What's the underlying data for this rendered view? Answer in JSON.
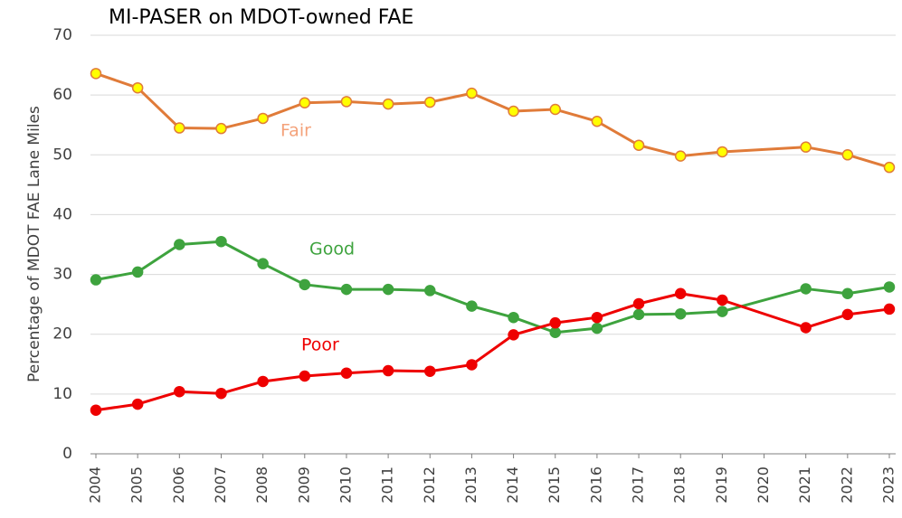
{
  "chart_data": {
    "type": "line",
    "title": "MI-PASER on MDOT-owned FAE",
    "y_label": "Percentage of MDOT FAE Lane Miles",
    "x": [
      2004,
      2005,
      2006,
      2007,
      2008,
      2009,
      2010,
      2011,
      2012,
      2013,
      2014,
      2015,
      2016,
      2017,
      2018,
      2019,
      2021,
      2022,
      2023
    ],
    "xlim": [
      2004,
      2023
    ],
    "xticks": [
      2004,
      2005,
      2006,
      2007,
      2008,
      2009,
      2010,
      2011,
      2012,
      2013,
      2014,
      2015,
      2016,
      2017,
      2018,
      2019,
      2020,
      2021,
      2022,
      2023
    ],
    "ylim": [
      0,
      70
    ],
    "yticks": [
      0,
      10,
      20,
      30,
      40,
      50,
      60,
      70
    ],
    "grid": true,
    "series": [
      {
        "name": "Fair",
        "color": "#e07b39",
        "marker_fill": "#ffff00",
        "label_color": "#f4a27a",
        "values": [
          63.6,
          61.2,
          54.5,
          54.4,
          56.1,
          58.7,
          58.9,
          58.5,
          58.8,
          60.3,
          57.3,
          57.6,
          55.6,
          51.6,
          49.8,
          50.5,
          51.3,
          50.0,
          47.9
        ]
      },
      {
        "name": "Good",
        "color": "#3ea33e",
        "marker_fill": "#3ea33e",
        "label_color": "#3ea33e",
        "values": [
          29.1,
          30.4,
          35.0,
          35.5,
          31.8,
          28.3,
          27.5,
          27.5,
          27.3,
          24.7,
          22.8,
          20.3,
          21.0,
          23.3,
          23.4,
          23.8,
          27.6,
          26.8,
          27.9
        ]
      },
      {
        "name": "Poor",
        "color": "#ee0000",
        "marker_fill": "#ee0000",
        "label_color": "#ee0000",
        "values": [
          7.3,
          8.3,
          10.4,
          10.1,
          12.1,
          13.0,
          13.5,
          13.9,
          13.8,
          14.9,
          19.9,
          21.9,
          22.8,
          25.1,
          26.8,
          25.7,
          21.1,
          23.3,
          24.2
        ]
      }
    ]
  }
}
